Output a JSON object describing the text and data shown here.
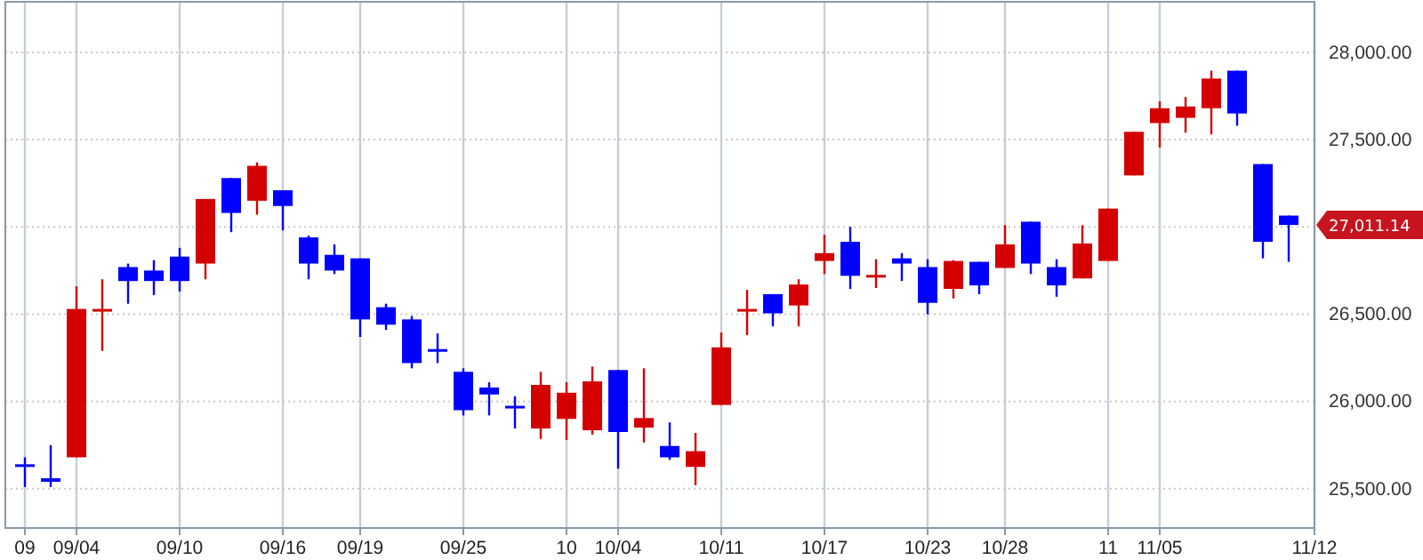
{
  "chart_data": {
    "type": "candlestick",
    "categories": [
      "09",
      null,
      "09/04",
      null,
      null,
      null,
      "09/10",
      null,
      null,
      null,
      "09/16",
      null,
      null,
      "09/19",
      null,
      null,
      null,
      "09/25",
      null,
      null,
      null,
      "10",
      null,
      "10/04",
      null,
      null,
      null,
      "10/11",
      null,
      null,
      null,
      "10/17",
      null,
      null,
      null,
      "10/23",
      null,
      null,
      "10/28",
      null,
      null,
      null,
      "11",
      null,
      "11/05",
      null,
      null,
      null,
      null,
      null,
      "11/12"
    ],
    "ohlc": [
      [
        25640,
        25680,
        25510,
        25630
      ],
      [
        25560,
        25750,
        25510,
        25540
      ],
      [
        25680,
        26660,
        25680,
        26530
      ],
      [
        26520,
        26700,
        26290,
        26530
      ],
      [
        26770,
        26790,
        26560,
        26690
      ],
      [
        26750,
        26810,
        26610,
        26690
      ],
      [
        26830,
        26880,
        26630,
        26690
      ],
      [
        26790,
        27160,
        26700,
        27160
      ],
      [
        27280,
        27280,
        26970,
        27080
      ],
      [
        27150,
        27370,
        27070,
        27350
      ],
      [
        27210,
        27210,
        26980,
        27120
      ],
      [
        26940,
        26950,
        26700,
        26790
      ],
      [
        26840,
        26900,
        26730,
        26750
      ],
      [
        26820,
        26820,
        26370,
        26470
      ],
      [
        26540,
        26560,
        26410,
        26440
      ],
      [
        26470,
        26490,
        26190,
        26220
      ],
      [
        26300,
        26390,
        26220,
        26290
      ],
      [
        26170,
        26190,
        25920,
        25950
      ],
      [
        26080,
        26110,
        25920,
        26040
      ],
      [
        25975,
        26030,
        25845,
        25965
      ],
      [
        25845,
        26170,
        25785,
        26095
      ],
      [
        25900,
        26110,
        25780,
        26050
      ],
      [
        25835,
        26200,
        25810,
        26115
      ],
      [
        26180,
        26180,
        25615,
        25825
      ],
      [
        25850,
        26190,
        25765,
        25905
      ],
      [
        25745,
        25880,
        25665,
        25680
      ],
      [
        25625,
        25820,
        25520,
        25715
      ],
      [
        25980,
        26395,
        25980,
        26310
      ],
      [
        26520,
        26640,
        26380,
        26530
      ],
      [
        26615,
        26615,
        26430,
        26505
      ],
      [
        26550,
        26700,
        26430,
        26670
      ],
      [
        26805,
        26955,
        26730,
        26850
      ],
      [
        26915,
        27000,
        26645,
        26720
      ],
      [
        26720,
        26815,
        26650,
        26725
      ],
      [
        26820,
        26850,
        26690,
        26790
      ],
      [
        26770,
        26815,
        26500,
        26565
      ],
      [
        26645,
        26810,
        26590,
        26805
      ],
      [
        26800,
        26800,
        26615,
        26665
      ],
      [
        26765,
        27010,
        26765,
        26900
      ],
      [
        27030,
        27030,
        26730,
        26790
      ],
      [
        26770,
        26815,
        26600,
        26665
      ],
      [
        26705,
        27010,
        26705,
        26905
      ],
      [
        26805,
        27105,
        26805,
        27105
      ],
      [
        27295,
        27545,
        27295,
        27545
      ],
      [
        27595,
        27720,
        27455,
        27680
      ],
      [
        27625,
        27745,
        27540,
        27690
      ],
      [
        27680,
        27895,
        27530,
        27850
      ],
      [
        27895,
        27895,
        27580,
        27650
      ],
      [
        27360,
        27360,
        26820,
        26915
      ],
      [
        27065,
        27065,
        26800,
        27011.14
      ],
      null
    ],
    "colors": [
      "#0000ff",
      "#0000ff",
      "#d40000",
      "#d40000",
      "#0000ff",
      "#0000ff",
      "#0000ff",
      "#d40000",
      "#0000ff",
      "#d40000",
      "#0000ff",
      "#0000ff",
      "#0000ff",
      "#0000ff",
      "#0000ff",
      "#0000ff",
      "#0000ff",
      "#0000ff",
      "#0000ff",
      "#0000ff",
      "#d40000",
      "#d40000",
      "#d40000",
      "#0000ff",
      "#d40000",
      "#0000ff",
      "#d40000",
      "#d40000",
      "#d40000",
      "#0000ff",
      "#d40000",
      "#d40000",
      "#0000ff",
      "#d40000",
      "#0000ff",
      "#0000ff",
      "#d40000",
      "#0000ff",
      "#d40000",
      "#0000ff",
      "#0000ff",
      "#d40000",
      "#d40000",
      "#d40000",
      "#d40000",
      "#d40000",
      "#d40000",
      "#0000ff",
      "#0000ff",
      "#0000ff",
      null
    ],
    "ylim": [
      25275,
      28290
    ],
    "yticks": [
      {
        "value": 25500,
        "label": "25,500.00"
      },
      {
        "value": 26000,
        "label": "26,000.00"
      },
      {
        "value": 26500,
        "label": "26,500.00"
      },
      {
        "value": 27000,
        "label": null
      },
      {
        "value": 27500,
        "label": "27,500.00"
      },
      {
        "value": 28000,
        "label": "28,000.00"
      }
    ],
    "grid": true,
    "annotations": [
      "27,011.14"
    ]
  }
}
